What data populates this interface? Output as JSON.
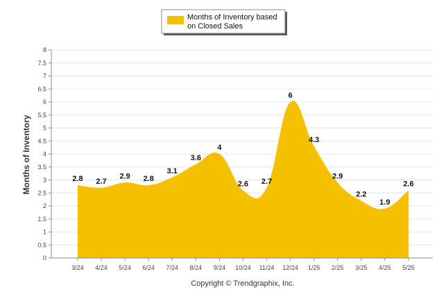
{
  "chart_data": {
    "type": "area",
    "categories": [
      "3/24",
      "4/24",
      "5/24",
      "6/24",
      "7/24",
      "8/24",
      "9/24",
      "10/24",
      "11/24",
      "12/24",
      "1/25",
      "2/25",
      "3/25",
      "4/25",
      "5/25"
    ],
    "series": [
      {
        "name": "Months of Inventory based on Closed Sales",
        "values": [
          2.8,
          2.7,
          2.9,
          2.8,
          3.1,
          3.6,
          4,
          2.6,
          2.7,
          6,
          4.3,
          2.9,
          2.2,
          1.9,
          2.6
        ],
        "color": "#f5c000"
      }
    ],
    "legend_lines": [
      "Months of Inventory based",
      "on Closed Sales"
    ],
    "ylabel": "Months of Inventory",
    "ylim": [
      0,
      8
    ],
    "yticks": [
      "0",
      "0.5",
      "1",
      "1.5",
      "2",
      "2.5",
      "3",
      "3.5",
      "4",
      "4.5",
      "5",
      "5.5",
      "6",
      "6.5",
      "7",
      "7.5",
      "8"
    ],
    "grid": true,
    "legend_position": "top-center"
  },
  "footer": "Copyright © Trendgraphix, Inc."
}
